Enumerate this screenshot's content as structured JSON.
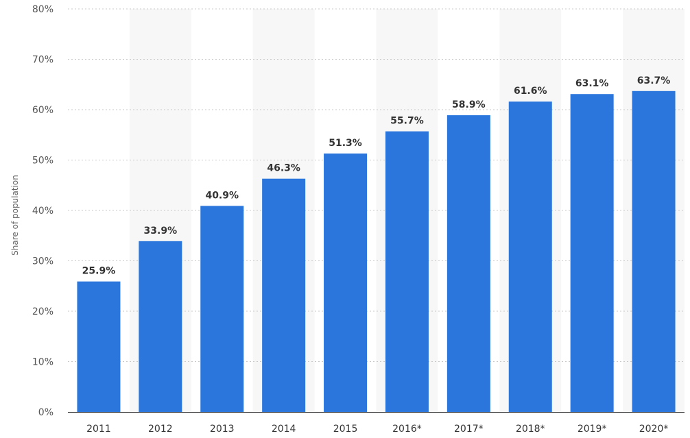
{
  "chart_data": {
    "type": "bar",
    "categories": [
      "2011",
      "2012",
      "2013",
      "2014",
      "2015",
      "2016*",
      "2017*",
      "2018*",
      "2019*",
      "2020*"
    ],
    "values": [
      25.9,
      33.9,
      40.9,
      46.3,
      51.3,
      55.7,
      58.9,
      61.6,
      63.1,
      63.7
    ],
    "value_labels": [
      "25.9%",
      "33.9%",
      "40.9%",
      "46.3%",
      "51.3%",
      "55.7%",
      "58.9%",
      "61.6%",
      "63.1%",
      "63.7%"
    ],
    "y_ticks": [
      0,
      10,
      20,
      30,
      40,
      50,
      60,
      70,
      80
    ],
    "y_tick_labels": [
      "0%",
      "10%",
      "20%",
      "30%",
      "40%",
      "50%",
      "60%",
      "70%",
      "80%"
    ],
    "ylabel": "Share of population",
    "xlabel": "",
    "title": "",
    "ylim": [
      0,
      80
    ],
    "grid": true,
    "legend": "none",
    "bar_color": "#2a76dd",
    "band_color": "#f7f7f7"
  }
}
